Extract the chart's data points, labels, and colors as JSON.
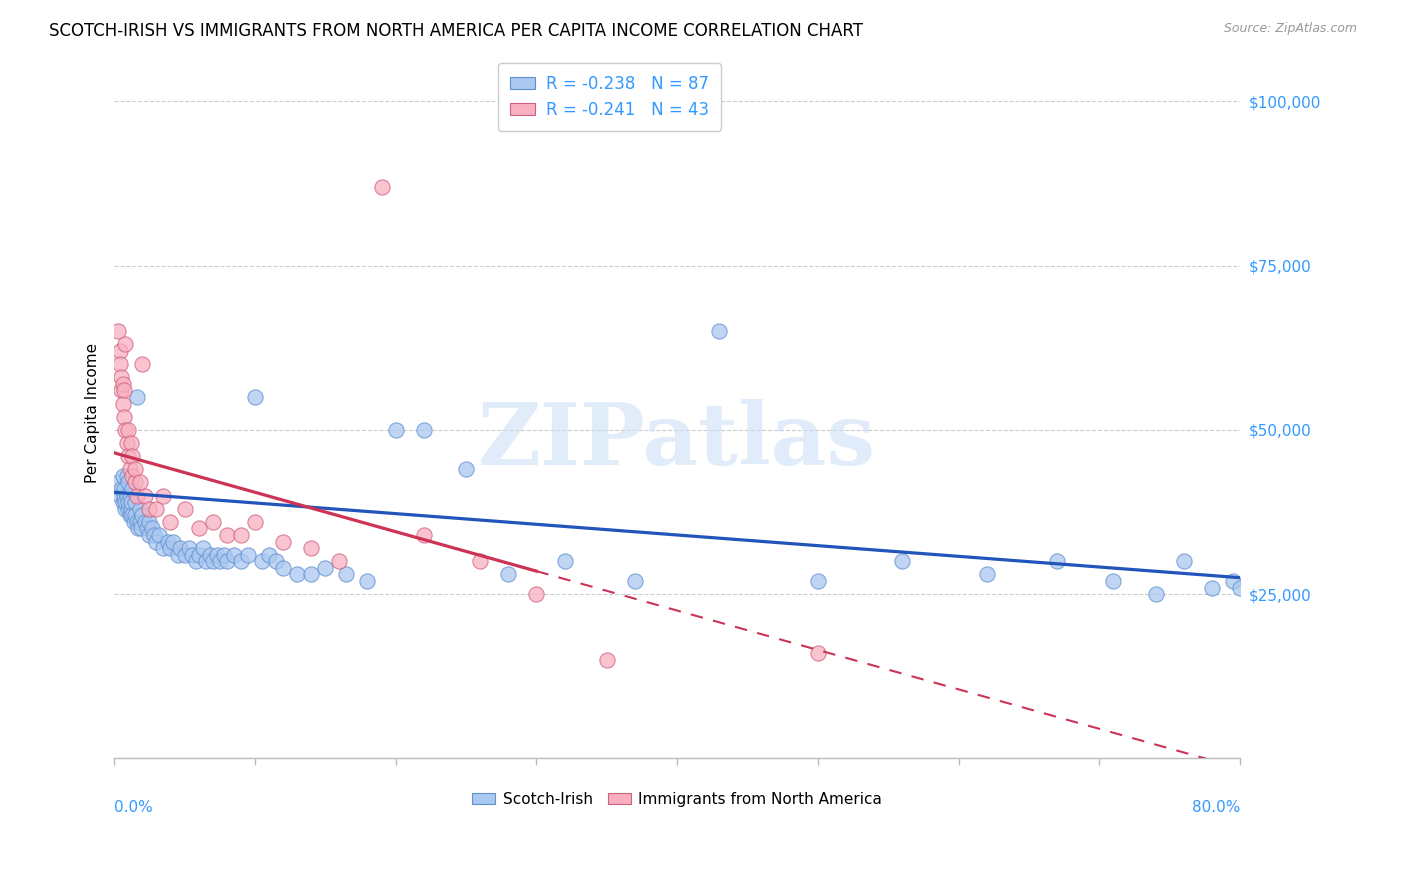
{
  "title": "SCOTCH-IRISH VS IMMIGRANTS FROM NORTH AMERICA PER CAPITA INCOME CORRELATION CHART",
  "source": "Source: ZipAtlas.com",
  "ylabel": "Per Capita Income",
  "legend_label1": "Scotch-Irish",
  "legend_label2": "Immigrants from North America",
  "R1": -0.238,
  "N1": 87,
  "R2": -0.241,
  "N2": 43,
  "color_blue_fill": "#aac8f0",
  "color_blue_edge": "#6090d0",
  "color_pink_fill": "#f8b0c0",
  "color_pink_edge": "#d06080",
  "color_blue_line": "#2255bb",
  "color_pink_line": "#cc3355",
  "color_axis_label": "#3399ff",
  "color_grid": "#cccccc",
  "ytick_values": [
    0,
    25000,
    50000,
    75000,
    100000
  ],
  "ytick_labels": [
    "",
    "$25,000",
    "$50,000",
    "$75,000",
    "$100,000"
  ],
  "xmin": 0.0,
  "xmax": 0.8,
  "ymin": 0,
  "ymax": 105000,
  "watermark_text": "ZIPatlas",
  "blue_x": [
    0.003,
    0.004,
    0.005,
    0.006,
    0.006,
    0.007,
    0.007,
    0.008,
    0.008,
    0.009,
    0.009,
    0.01,
    0.01,
    0.01,
    0.011,
    0.011,
    0.012,
    0.012,
    0.013,
    0.013,
    0.014,
    0.015,
    0.015,
    0.016,
    0.016,
    0.017,
    0.018,
    0.018,
    0.019,
    0.02,
    0.022,
    0.023,
    0.025,
    0.025,
    0.027,
    0.028,
    0.03,
    0.032,
    0.035,
    0.038,
    0.04,
    0.042,
    0.045,
    0.047,
    0.05,
    0.053,
    0.055,
    0.058,
    0.06,
    0.063,
    0.065,
    0.068,
    0.07,
    0.073,
    0.075,
    0.078,
    0.08,
    0.085,
    0.09,
    0.095,
    0.1,
    0.105,
    0.11,
    0.115,
    0.12,
    0.13,
    0.14,
    0.15,
    0.165,
    0.18,
    0.2,
    0.22,
    0.25,
    0.28,
    0.32,
    0.37,
    0.43,
    0.5,
    0.56,
    0.62,
    0.67,
    0.71,
    0.74,
    0.76,
    0.78,
    0.795,
    0.8
  ],
  "blue_y": [
    42000,
    40000,
    41000,
    39000,
    43000,
    40000,
    41000,
    38000,
    39000,
    40000,
    43000,
    38000,
    39000,
    42000,
    37000,
    40000,
    38000,
    39000,
    37000,
    41000,
    36000,
    37000,
    39000,
    36000,
    55000,
    35000,
    36000,
    38000,
    35000,
    37000,
    36000,
    35000,
    34000,
    36000,
    35000,
    34000,
    33000,
    34000,
    32000,
    33000,
    32000,
    33000,
    31000,
    32000,
    31000,
    32000,
    31000,
    30000,
    31000,
    32000,
    30000,
    31000,
    30000,
    31000,
    30000,
    31000,
    30000,
    31000,
    30000,
    31000,
    55000,
    30000,
    31000,
    30000,
    29000,
    28000,
    28000,
    29000,
    28000,
    27000,
    50000,
    50000,
    44000,
    28000,
    30000,
    27000,
    65000,
    27000,
    30000,
    28000,
    30000,
    27000,
    25000,
    30000,
    26000,
    27000,
    26000
  ],
  "pink_x": [
    0.003,
    0.004,
    0.004,
    0.005,
    0.005,
    0.006,
    0.006,
    0.007,
    0.007,
    0.008,
    0.008,
    0.009,
    0.01,
    0.01,
    0.011,
    0.012,
    0.013,
    0.013,
    0.015,
    0.015,
    0.016,
    0.018,
    0.02,
    0.022,
    0.025,
    0.03,
    0.035,
    0.04,
    0.05,
    0.06,
    0.07,
    0.08,
    0.09,
    0.1,
    0.12,
    0.14,
    0.16,
    0.19,
    0.22,
    0.26,
    0.3,
    0.35,
    0.5
  ],
  "pink_y": [
    65000,
    62000,
    60000,
    58000,
    56000,
    57000,
    54000,
    52000,
    56000,
    50000,
    63000,
    48000,
    46000,
    50000,
    44000,
    48000,
    43000,
    46000,
    42000,
    44000,
    40000,
    42000,
    60000,
    40000,
    38000,
    38000,
    40000,
    36000,
    38000,
    35000,
    36000,
    34000,
    34000,
    36000,
    33000,
    32000,
    30000,
    87000,
    34000,
    30000,
    25000,
    15000,
    16000
  ]
}
